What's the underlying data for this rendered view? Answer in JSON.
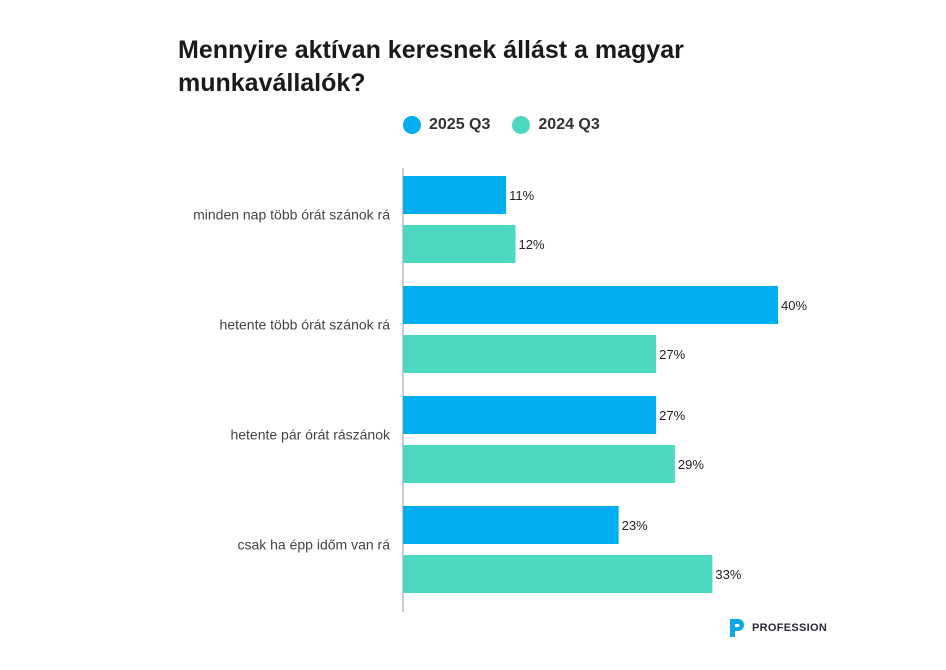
{
  "chart_data": {
    "type": "bar",
    "orientation": "horizontal",
    "title": "Mennyire aktívan keresnek állást a magyar munkavállalók?",
    "categories": [
      "minden nap több órát szánok rá",
      "hetente több órát szánok rá",
      "hetente pár órát rászánok",
      "csak ha épp időm van rá"
    ],
    "series": [
      {
        "name": "2025 Q3",
        "color": "#00AEEF",
        "values": [
          11,
          40,
          27,
          23
        ],
        "labels": [
          "11%",
          "40%",
          "27%",
          "23%"
        ]
      },
      {
        "name": "2024 Q3",
        "color": "#4DD9C0",
        "values": [
          12,
          27,
          29,
          33
        ],
        "labels": [
          "12%",
          "27%",
          "29%",
          "33%"
        ]
      }
    ],
    "xlim": [
      0,
      40
    ],
    "legend_position": "top",
    "grid": false
  },
  "brand": {
    "name": "PROFESSION",
    "color": "#0AA6E8"
  }
}
